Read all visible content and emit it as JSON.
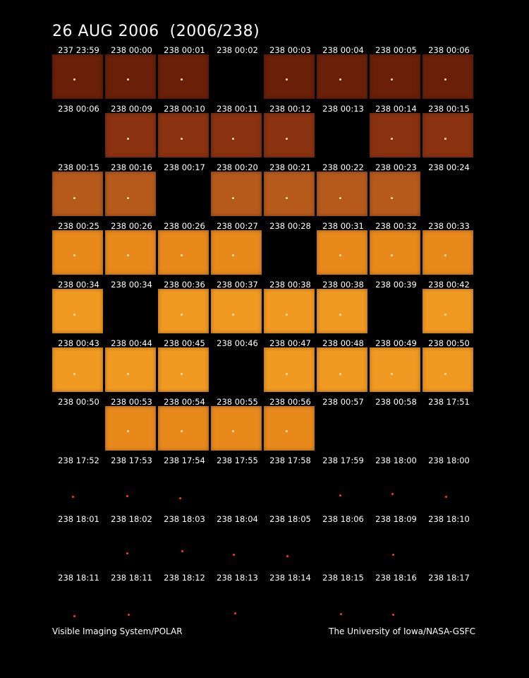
{
  "title": "26 AUG 2006  (2006/238)",
  "footer_left": "Visible Imaging System/POLAR",
  "footer_right": "The University of Iowa/NASA-GSFC",
  "frame_colors": {
    "very_dark": "#6a2008",
    "dark": "#8a3210",
    "medium": "#b65a1c",
    "bright": "#e8891c",
    "very_bright": "#f19a22",
    "spot": "#ff3a10"
  },
  "rows": [
    {
      "labels": [
        "237 23:59",
        "238 00:00",
        "238 00:01",
        "238 00:02",
        "238 00:03",
        "238 00:04",
        "238 00:05",
        "238 00:06"
      ],
      "frames": [
        "very_dark",
        "very_dark",
        "very_dark",
        "none",
        "very_dark",
        "very_dark",
        "very_dark",
        "very_dark"
      ]
    },
    {
      "labels": [
        "238 00:06",
        "238 00:09",
        "238 00:10",
        "238 00:11",
        "238 00:12",
        "238 00:13",
        "238 00:14",
        "238 00:15"
      ],
      "frames": [
        "none",
        "dark",
        "dark",
        "dark",
        "dark",
        "none",
        "dark",
        "dark"
      ]
    },
    {
      "labels": [
        "238 00:15",
        "238 00:16",
        "238 00:17",
        "238 00:20",
        "238 00:21",
        "238 00:22",
        "238 00:23",
        "238 00:24"
      ],
      "frames": [
        "medium",
        "medium",
        "none",
        "medium",
        "medium",
        "medium",
        "medium",
        "none"
      ]
    },
    {
      "labels": [
        "238 00:25",
        "238 00:26",
        "238 00:26",
        "238 00:27",
        "238 00:28",
        "238 00:31",
        "238 00:32",
        "238 00:33"
      ],
      "frames": [
        "bright",
        "bright",
        "bright",
        "bright",
        "none",
        "bright",
        "bright",
        "bright"
      ]
    },
    {
      "labels": [
        "238 00:34",
        "238 00:34",
        "238 00:36",
        "238 00:37",
        "238 00:38",
        "238 00:38",
        "238 00:39",
        "238 00:42"
      ],
      "frames": [
        "very_bright",
        "none",
        "very_bright",
        "very_bright",
        "very_bright",
        "very_bright",
        "none",
        "very_bright"
      ]
    },
    {
      "labels": [
        "238 00:43",
        "238 00:44",
        "238 00:45",
        "238 00:46",
        "238 00:47",
        "238 00:48",
        "238 00:49",
        "238 00:50"
      ],
      "frames": [
        "very_bright",
        "very_bright",
        "very_bright",
        "none",
        "very_bright",
        "very_bright",
        "very_bright",
        "very_bright"
      ]
    },
    {
      "labels": [
        "238 00:50",
        "238 00:53",
        "238 00:54",
        "238 00:55",
        "238 00:56",
        "238 00:57",
        "238 00:58",
        "238 17:51"
      ],
      "frames": [
        "none",
        "bright",
        "bright",
        "bright",
        "bright",
        "none",
        "none",
        "none"
      ]
    },
    {
      "labels": [
        "238 17:52",
        "238 17:53",
        "238 17:54",
        "238 17:55",
        "238 17:58",
        "238 17:59",
        "238 18:00",
        "238 18:00"
      ],
      "frames": [
        "none",
        "none",
        "none",
        "none",
        "none",
        "none",
        "none",
        "none"
      ]
    },
    {
      "labels": [
        "238 18:01",
        "238 18:02",
        "238 18:03",
        "238 18:04",
        "238 18:05",
        "238 18:06",
        "238 18:09",
        "238 18:10"
      ],
      "frames": [
        "none",
        "none",
        "none",
        "none",
        "none",
        "none",
        "none",
        "none"
      ]
    },
    {
      "labels": [
        "238 18:11",
        "238 18:11",
        "238 18:12",
        "238 18:13",
        "238 18:14",
        "238 18:15",
        "238 18:16",
        "238 18:17"
      ],
      "frames": [
        "none",
        "none",
        "none",
        "none",
        "none",
        "none",
        "none",
        "none"
      ]
    }
  ]
}
